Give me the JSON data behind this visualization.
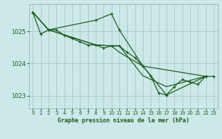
{
  "background_color": "#cce8e8",
  "plot_bg_color": "#cce8e8",
  "grid_color": "#aacccc",
  "line_color": "#1a5c1a",
  "marker_color": "#1a5c1a",
  "title": "Graphe pression niveau de la mer (hPa)",
  "title_color": "#1a5c1a",
  "xlim": [
    -0.5,
    23.5
  ],
  "ylim": [
    1022.6,
    1025.85
  ],
  "yticks": [
    1023,
    1024,
    1025
  ],
  "xticks": [
    0,
    1,
    2,
    3,
    4,
    5,
    6,
    7,
    8,
    9,
    10,
    11,
    12,
    13,
    14,
    15,
    16,
    17,
    18,
    19,
    20,
    21,
    22,
    23
  ],
  "series": [
    {
      "x": [
        0,
        1,
        2,
        3,
        4,
        5,
        6,
        7,
        8,
        9,
        10,
        11,
        12,
        13,
        14,
        15,
        16,
        17,
        18,
        19,
        20,
        21,
        22,
        23
      ],
      "y": [
        1025.6,
        1024.92,
        1025.05,
        1025.05,
        1024.88,
        1024.78,
        1024.68,
        1024.58,
        1024.58,
        1024.48,
        1024.55,
        1024.55,
        1024.35,
        1024.18,
        1023.92,
        1023.62,
        1023.08,
        1023.02,
        1023.28,
        1023.5,
        1023.42,
        1023.35,
        1023.6,
        1023.6
      ],
      "has_markers": true
    },
    {
      "x": [
        0,
        2,
        8,
        10,
        11,
        14,
        17,
        22
      ],
      "y": [
        1025.6,
        1025.05,
        1025.35,
        1025.55,
        1025.05,
        1023.92,
        1023.02,
        1023.6
      ],
      "has_markers": true
    },
    {
      "x": [
        0,
        2,
        8,
        10,
        11,
        14,
        17,
        22
      ],
      "y": [
        1025.6,
        1025.05,
        1024.58,
        1024.55,
        1024.55,
        1023.62,
        1023.28,
        1023.6
      ],
      "has_markers": false
    },
    {
      "x": [
        0,
        2,
        8,
        10,
        11,
        14,
        22
      ],
      "y": [
        1025.6,
        1025.05,
        1024.58,
        1024.55,
        1024.35,
        1023.92,
        1023.6
      ],
      "has_markers": false
    }
  ]
}
